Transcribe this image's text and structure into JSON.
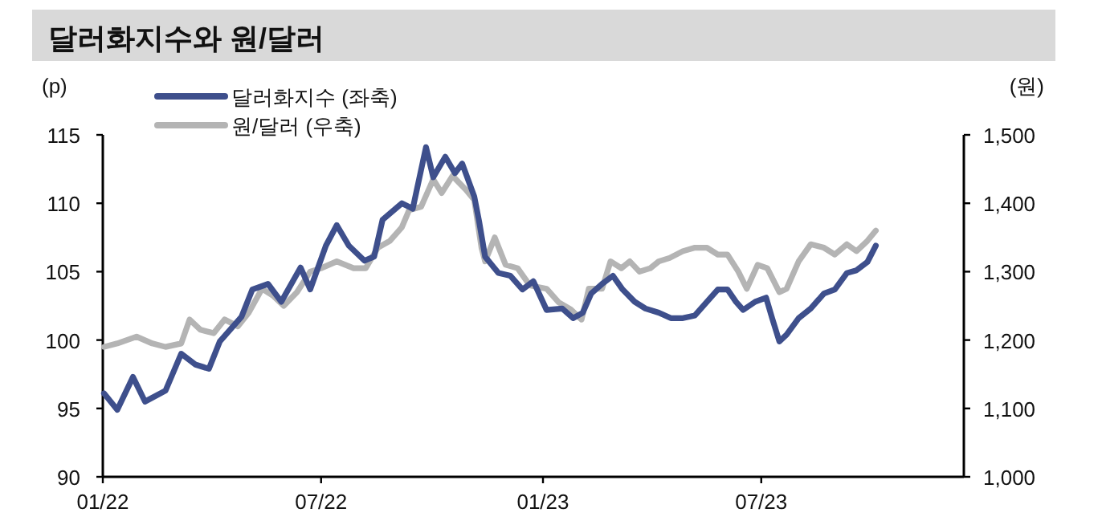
{
  "chart_data": {
    "type": "line",
    "title": "달러화지수와 원/달러",
    "ylabel": "(p)",
    "y2label": "(원)",
    "xlim": [
      "2022-01-01",
      "2023-12-16"
    ],
    "xticks": [
      {
        "value": "2022-01-01",
        "label": "01/22"
      },
      {
        "value": "2022-07-01",
        "label": "07/22"
      },
      {
        "value": "2023-01-01",
        "label": "01/23"
      },
      {
        "value": "2023-07-01",
        "label": "07/23"
      }
    ],
    "ylim": [
      90,
      115
    ],
    "yticks": [
      90,
      95,
      100,
      105,
      110,
      115
    ],
    "y2lim": [
      1000,
      1500
    ],
    "y2ticks": [
      {
        "value": 1000,
        "label": "1,000"
      },
      {
        "value": 1100,
        "label": "1,100"
      },
      {
        "value": 1200,
        "label": "1,200"
      },
      {
        "value": 1300,
        "label": "1,300"
      },
      {
        "value": 1400,
        "label": "1,400"
      },
      {
        "value": 1500,
        "label": "1,500"
      }
    ],
    "legend": "top left",
    "grid": false,
    "marker": "none",
    "line_style": "solid",
    "series": [
      {
        "name": "달러화지수 (좌축)",
        "color": "#3e4f8c",
        "axis": "y",
        "x": [
          "2022-01-02",
          "2022-01-13",
          "2022-01-26",
          "2022-02-05",
          "2022-02-22",
          "2022-03-07",
          "2022-03-19",
          "2022-03-30",
          "2022-04-08",
          "2022-04-26",
          "2022-05-05",
          "2022-05-18",
          "2022-05-29",
          "2022-06-14",
          "2022-06-22",
          "2022-07-05",
          "2022-07-14",
          "2022-07-24",
          "2022-08-06",
          "2022-08-14",
          "2022-08-21",
          "2022-09-06",
          "2022-09-15",
          "2022-09-26",
          "2022-10-02",
          "2022-10-12",
          "2022-10-20",
          "2022-10-26",
          "2022-11-05",
          "2022-11-09",
          "2022-11-14",
          "2022-11-25",
          "2022-12-05",
          "2022-12-15",
          "2022-12-24",
          "2023-01-04",
          "2023-01-17",
          "2023-01-26",
          "2023-02-03",
          "2023-02-10",
          "2023-02-19",
          "2023-02-28",
          "2023-03-08",
          "2023-03-18",
          "2023-03-27",
          "2023-04-07",
          "2023-04-17",
          "2023-04-27",
          "2023-05-07",
          "2023-05-17",
          "2023-05-26",
          "2023-06-03",
          "2023-06-10",
          "2023-06-16",
          "2023-06-26",
          "2023-07-05",
          "2023-07-10",
          "2023-07-16",
          "2023-07-22",
          "2023-08-01",
          "2023-08-11",
          "2023-08-22",
          "2023-08-31",
          "2023-09-10",
          "2023-09-18",
          "2023-09-27",
          "2023-10-04"
        ],
        "values": [
          96.1,
          94.9,
          97.3,
          95.5,
          96.3,
          99.0,
          98.2,
          97.9,
          99.9,
          101.7,
          103.7,
          104.1,
          102.8,
          105.3,
          103.7,
          106.9,
          108.4,
          106.9,
          105.8,
          106.1,
          108.8,
          110.0,
          109.6,
          114.1,
          111.9,
          113.4,
          112.2,
          112.9,
          110.5,
          108.7,
          106.1,
          104.9,
          104.7,
          103.7,
          104.3,
          102.2,
          102.3,
          101.6,
          102.0,
          103.4,
          104.1,
          104.7,
          103.7,
          102.8,
          102.3,
          102.0,
          101.6,
          101.6,
          101.8,
          102.8,
          103.7,
          103.7,
          102.8,
          102.2,
          102.8,
          103.1,
          101.6,
          99.9,
          100.4,
          101.6,
          102.3,
          103.4,
          103.7,
          104.9,
          105.1,
          105.7,
          106.9
        ]
      },
      {
        "name": "원/달러 (우축)",
        "color": "#b4b4b4",
        "axis": "y2",
        "x": [
          "2022-01-02",
          "2022-01-13",
          "2022-01-29",
          "2022-02-11",
          "2022-02-22",
          "2022-03-07",
          "2022-03-14",
          "2022-03-23",
          "2022-04-03",
          "2022-04-12",
          "2022-04-23",
          "2022-05-02",
          "2022-05-13",
          "2022-05-22",
          "2022-05-31",
          "2022-06-11",
          "2022-06-22",
          "2022-07-01",
          "2022-07-14",
          "2022-07-28",
          "2022-08-07",
          "2022-08-17",
          "2022-08-27",
          "2022-09-06",
          "2022-09-12",
          "2022-09-22",
          "2022-10-02",
          "2022-10-09",
          "2022-10-18",
          "2022-10-29",
          "2022-11-05",
          "2022-11-11",
          "2022-11-14",
          "2022-11-22",
          "2022-12-01",
          "2022-12-11",
          "2022-12-21",
          "2023-01-04",
          "2023-01-14",
          "2023-01-24",
          "2023-02-02",
          "2023-02-08",
          "2023-02-19",
          "2023-02-26",
          "2023-03-07",
          "2023-03-14",
          "2023-03-22",
          "2023-03-31",
          "2023-04-07",
          "2023-04-16",
          "2023-04-27",
          "2023-05-07",
          "2023-05-17",
          "2023-05-26",
          "2023-06-03",
          "2023-06-12",
          "2023-06-19",
          "2023-06-28",
          "2023-07-06",
          "2023-07-16",
          "2023-07-22",
          "2023-08-01",
          "2023-08-11",
          "2023-08-22",
          "2023-08-31",
          "2023-09-10",
          "2023-09-18",
          "2023-09-27",
          "2023-10-04"
        ],
        "values": [
          1190,
          1195,
          1205,
          1195,
          1190,
          1195,
          1230,
          1215,
          1210,
          1230,
          1220,
          1240,
          1275,
          1265,
          1250,
          1270,
          1300,
          1305,
          1315,
          1305,
          1305,
          1335,
          1345,
          1365,
          1390,
          1395,
          1435,
          1415,
          1440,
          1420,
          1405,
          1335,
          1315,
          1350,
          1310,
          1305,
          1280,
          1275,
          1255,
          1245,
          1230,
          1275,
          1275,
          1315,
          1305,
          1315,
          1300,
          1305,
          1315,
          1320,
          1330,
          1335,
          1335,
          1325,
          1325,
          1300,
          1275,
          1310,
          1305,
          1270,
          1275,
          1315,
          1340,
          1335,
          1325,
          1340,
          1330,
          1345,
          1360
        ]
      }
    ]
  }
}
